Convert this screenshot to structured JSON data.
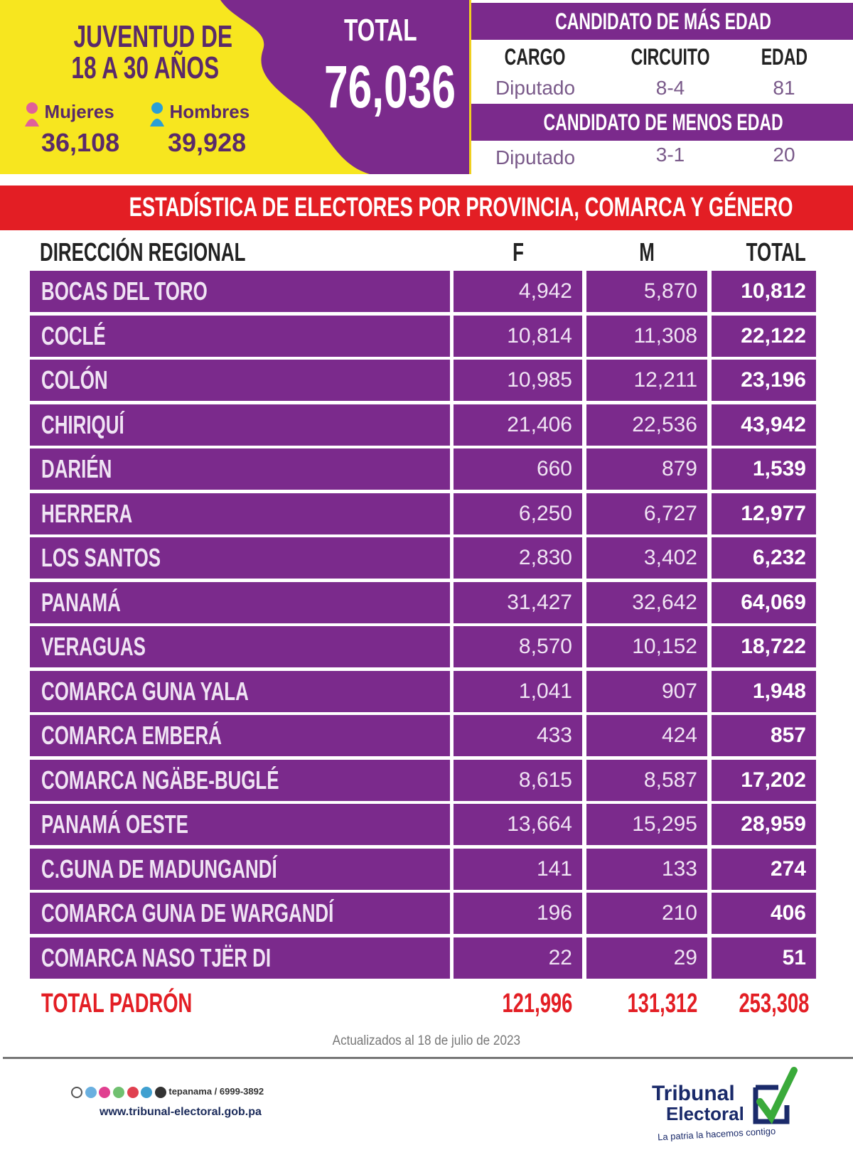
{
  "colors": {
    "purple": "#7b2a8c",
    "yellow": "#f7e61f",
    "red": "#e31e24",
    "women": "#e0609a",
    "men": "#2a9fd6"
  },
  "hero": {
    "title_line1": "JUVENTUD DE",
    "title_line2": "18 A 30 AÑOS",
    "women_label": "Mujeres",
    "women_value": "36,108",
    "women_icon": "female-person-icon",
    "men_label": "Hombres",
    "men_value": "39,928",
    "men_icon": "male-person-icon",
    "total_label": "TOTAL",
    "total_value": "76,036"
  },
  "oldest": {
    "title": "CANDIDATO DE MÁS EDAD",
    "headers": [
      "CARGO",
      "CIRCUITO",
      "EDAD"
    ],
    "values": [
      "Diputado",
      "8-4",
      "81"
    ]
  },
  "youngest": {
    "title": "CANDIDATO DE MENOS EDAD",
    "values": [
      "Diputado",
      "3-1",
      "20"
    ]
  },
  "banner": "ESTADÍSTICA DE ELECTORES POR PROVINCIA, COMARCA  Y GÉNERO",
  "table": {
    "headers": [
      "DIRECCIÓN REGIONAL",
      "F",
      "M",
      "TOTAL"
    ],
    "rows": [
      [
        "BOCAS DEL TORO",
        "4,942",
        "5,870",
        "10,812"
      ],
      [
        "COCLÉ",
        "10,814",
        "11,308",
        "22,122"
      ],
      [
        "COLÓN",
        "10,985",
        "12,211",
        "23,196"
      ],
      [
        "CHIRIQUÍ",
        "21,406",
        "22,536",
        "43,942"
      ],
      [
        "DARIÉN",
        "660",
        "879",
        "1,539"
      ],
      [
        "HERRERA",
        "6,250",
        "6,727",
        "12,977"
      ],
      [
        "LOS SANTOS",
        "2,830",
        "3,402",
        "6,232"
      ],
      [
        "PANAMÁ",
        "31,427",
        "32,642",
        "64,069"
      ],
      [
        "VERAGUAS",
        "8,570",
        "10,152",
        "18,722"
      ],
      [
        "COMARCA GUNA YALA",
        "1,041",
        "907",
        "1,948"
      ],
      [
        "COMARCA EMBERÁ",
        "433",
        "424",
        "857"
      ],
      [
        "COMARCA NGÄBE-BUGLÉ",
        "8,615",
        "8,587",
        "17,202"
      ],
      [
        "PANAMÁ OESTE",
        "13,664",
        "15,295",
        "28,959"
      ],
      [
        "C.GUNA DE MADUNGANDÍ",
        "141",
        "133",
        "274"
      ],
      [
        "COMARCA GUNA DE WARGANDÍ",
        "196",
        "210",
        "406"
      ],
      [
        "COMARCA NASO TJËR DI",
        "22",
        "29",
        "51"
      ]
    ],
    "total": [
      "TOTAL PADRÓN",
      "121,996",
      "131,312",
      "253,308"
    ]
  },
  "updated": "Actualizados al 18 de julio de 2023",
  "footer": {
    "social_handle": "tepanama / 6999-3892",
    "url": "www.tribunal-electoral.gob.pa",
    "logo_line1": "Tribunal",
    "logo_line2": "Electoral",
    "logo_tagline": "La patria la hacemos contigo"
  }
}
